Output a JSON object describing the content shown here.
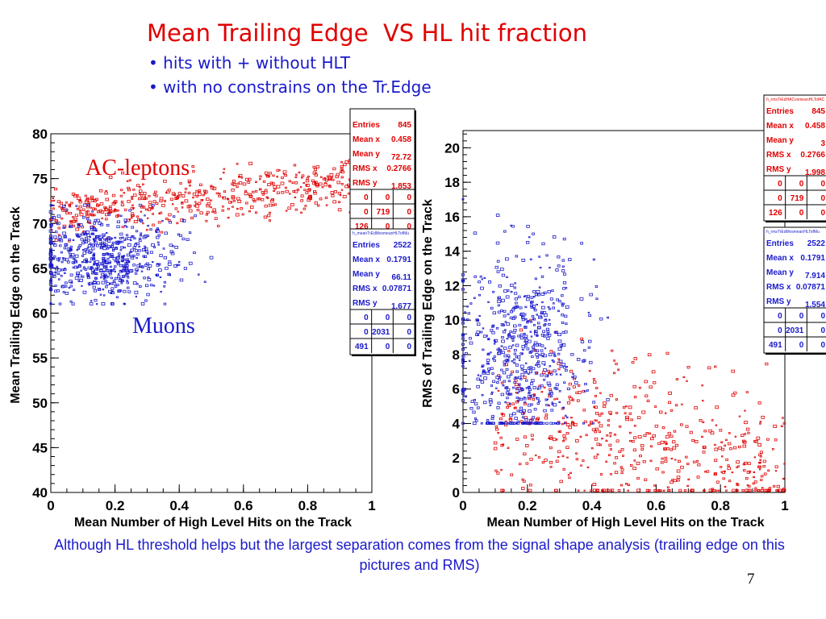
{
  "slide": {
    "title": "Mean Trailing Edge  VS HL hit fraction",
    "bullets": [
      "• hits with + without HLT",
      "• with no constrains on the Tr.Edge"
    ],
    "footer": "Although HL threshold helps but the largest separation comes from the signal shape analysis (trailing edge on this pictures and RMS)",
    "page_number": "7"
  },
  "colors": {
    "red": "#e00000",
    "blue": "#1a1acc",
    "text_blue": "#1a1acc"
  },
  "chart_data": [
    {
      "type": "scatter",
      "xlabel": "Mean Number of High Level Hits on the Track",
      "ylabel": "Mean Trailing Edge on the Track",
      "xlim": [
        0,
        1
      ],
      "ylim": [
        40,
        80
      ],
      "xticks": [
        0,
        0.2,
        0.4,
        0.6,
        0.8,
        1
      ],
      "yticks": [
        40,
        45,
        50,
        55,
        60,
        65,
        70,
        75,
        80
      ],
      "annotations": [
        "AC-leptons",
        "Muons"
      ],
      "series": [
        {
          "name": "AC-leptons",
          "color": "#e00000",
          "x_range": [
            0.0,
            1.0
          ],
          "y_range": [
            68,
            77
          ],
          "approx_center": [
            0.45,
            73
          ]
        },
        {
          "name": "Muons",
          "color": "#1a1acc",
          "x_range": [
            0.0,
            0.5
          ],
          "y_range": [
            61,
            72
          ],
          "approx_center": [
            0.17,
            66
          ]
        }
      ],
      "stats": [
        {
          "header": "",
          "rows": [
            [
              "Entries",
              "845"
            ],
            [
              "Mean x",
              "0.458"
            ],
            [
              "Mean y",
              "72.72"
            ],
            [
              "RMS x",
              "0.2766"
            ],
            [
              "RMS y",
              "1.853"
            ]
          ],
          "grid": [
            [
              "0",
              "0",
              "0"
            ],
            [
              "0",
              "719",
              "0"
            ],
            [
              "126",
              "0",
              "0"
            ]
          ]
        },
        {
          "header": "h_meanTrEdMvsmeanHLTofMu",
          "rows": [
            [
              "Entries",
              "2522"
            ],
            [
              "Mean x",
              "0.1791"
            ],
            [
              "Mean y",
              "66.11"
            ],
            [
              "RMS x",
              "0.07871"
            ],
            [
              "RMS y",
              "1.677"
            ]
          ],
          "grid": [
            [
              "0",
              "0",
              "0"
            ],
            [
              "0",
              "2031",
              "0"
            ],
            [
              "491",
              "0",
              "0"
            ]
          ]
        }
      ]
    },
    {
      "type": "scatter",
      "xlabel": "Mean Number of High Level Hits on the Track",
      "ylabel": "RMS of Trailing Edge on the Track",
      "xlim": [
        0,
        1
      ],
      "ylim": [
        0,
        21
      ],
      "xticks": [
        0,
        0.2,
        0.4,
        0.6,
        0.8,
        1
      ],
      "yticks": [
        0,
        2,
        4,
        6,
        8,
        10,
        12,
        14,
        16,
        18,
        20
      ],
      "series": [
        {
          "name": "AC-leptons",
          "color": "#e00000",
          "x_range": [
            0.1,
            1.0
          ],
          "y_range": [
            0,
            10
          ],
          "approx_center": [
            0.46,
            3
          ]
        },
        {
          "name": "Muons",
          "color": "#1a1acc",
          "x_range": [
            0.0,
            0.45
          ],
          "y_range": [
            4,
            17
          ],
          "approx_center": [
            0.18,
            8
          ]
        }
      ],
      "stats": [
        {
          "header": "h_rmsTrEdHACvsmeanHLTofAC",
          "rows": [
            [
              "Entries",
              "845"
            ],
            [
              "Mean x",
              "0.458"
            ],
            [
              "Mean y",
              "3"
            ],
            [
              "RMS x",
              "0.2766"
            ],
            [
              "RMS y",
              "1.998"
            ]
          ],
          "grid": [
            [
              "0",
              "0",
              "0"
            ],
            [
              "0",
              "719",
              "0"
            ],
            [
              "126",
              "0",
              "0"
            ]
          ]
        },
        {
          "header": "h_rmsTrEdMvsmeanHLTofMu",
          "rows": [
            [
              "Entries",
              "2522"
            ],
            [
              "Mean x",
              "0.1791"
            ],
            [
              "Mean y",
              "7.914"
            ],
            [
              "RMS x",
              "0.07871"
            ],
            [
              "RMS y",
              "1.554"
            ]
          ],
          "grid": [
            [
              "0",
              "0",
              "0"
            ],
            [
              "0",
              "2031",
              "0"
            ],
            [
              "491",
              "0",
              "0"
            ]
          ]
        }
      ]
    }
  ]
}
